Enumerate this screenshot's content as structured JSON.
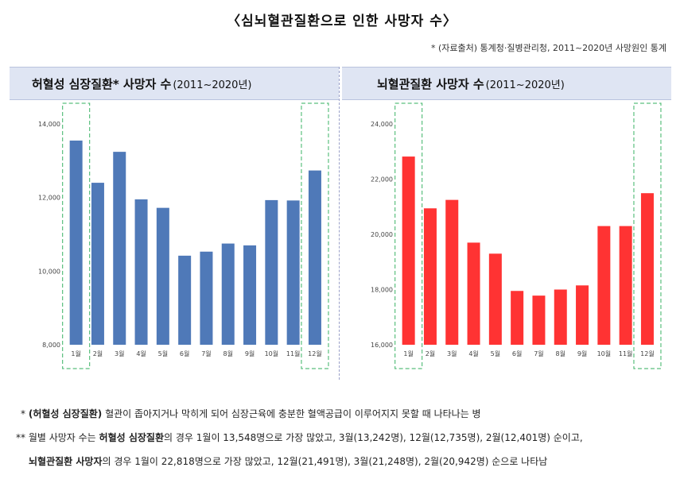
{
  "title": "〈심뇌혈관질환으로 인한 사망자 수〉",
  "source": "* (자료출처) 통계청·질병관리청, 2011~2020년 사망원인 통계",
  "panels": {
    "left": {
      "title_main": "허혈성 심장질환* 사망자 수",
      "title_paren": "(2011~2020년)"
    },
    "right": {
      "title_main": "뇌혈관질환 사망자 수",
      "title_paren": "(2011~2020년)"
    }
  },
  "colors": {
    "left_bar": "#4f79b8",
    "right_bar": "#ff3333",
    "highlight_box": "#5bbf7e"
  },
  "chart_data": [
    {
      "type": "bar",
      "title": "허혈성 심장질환* 사망자 수(2011~2020년)",
      "categories": [
        "1월",
        "2월",
        "3월",
        "4월",
        "5월",
        "6월",
        "7월",
        "8월",
        "9월",
        "10월",
        "11월",
        "12월"
      ],
      "values": [
        13548,
        12401,
        13242,
        11950,
        11720,
        10420,
        10530,
        10750,
        10700,
        11930,
        11920,
        12735
      ],
      "ylim": [
        8000,
        14000
      ],
      "yticks": [
        "8,000",
        "10,000",
        "12,000",
        "14,000"
      ],
      "highlighted": [
        "1월",
        "12월"
      ]
    },
    {
      "type": "bar",
      "title": "뇌혈관질환 사망자 수(2011~2020년)",
      "categories": [
        "1월",
        "2월",
        "3월",
        "4월",
        "5월",
        "6월",
        "7월",
        "8월",
        "9월",
        "10월",
        "11월",
        "12월"
      ],
      "values": [
        22818,
        20942,
        21248,
        19700,
        19300,
        17950,
        17780,
        18000,
        18150,
        20300,
        20300,
        21491
      ],
      "ylim": [
        16000,
        24000
      ],
      "yticks": [
        "16,000",
        "18,000",
        "20,000",
        "22,000",
        "24,000"
      ],
      "highlighted": [
        "1월",
        "12월"
      ]
    }
  ],
  "footnotes": {
    "line1_mark": "*",
    "line1_bold": "(허혈성 심장질환)",
    "line1_rest": " 혈관이 좁아지거나 막히게 되어 심장근육에 충분한 혈액공급이 이루어지지 못할 때 나타나는 병",
    "line2_mark": "**",
    "line2_pre": " 월별 사망자 수는 ",
    "line2_bold": "허혈성 심장질환",
    "line2_rest": "의 경우 1월이 13,548명으로 가장 많았고, 3월(13,242명), 12월(12,735명), 2월(12,401명) 순이고,",
    "line3_bold": "뇌혈관질환 사망자",
    "line3_rest": "의 경우 1월이 22,818명으로 가장 많았고, 12월(21,491명), 3월(21,248명), 2월(20,942명) 순으로 나타남"
  }
}
